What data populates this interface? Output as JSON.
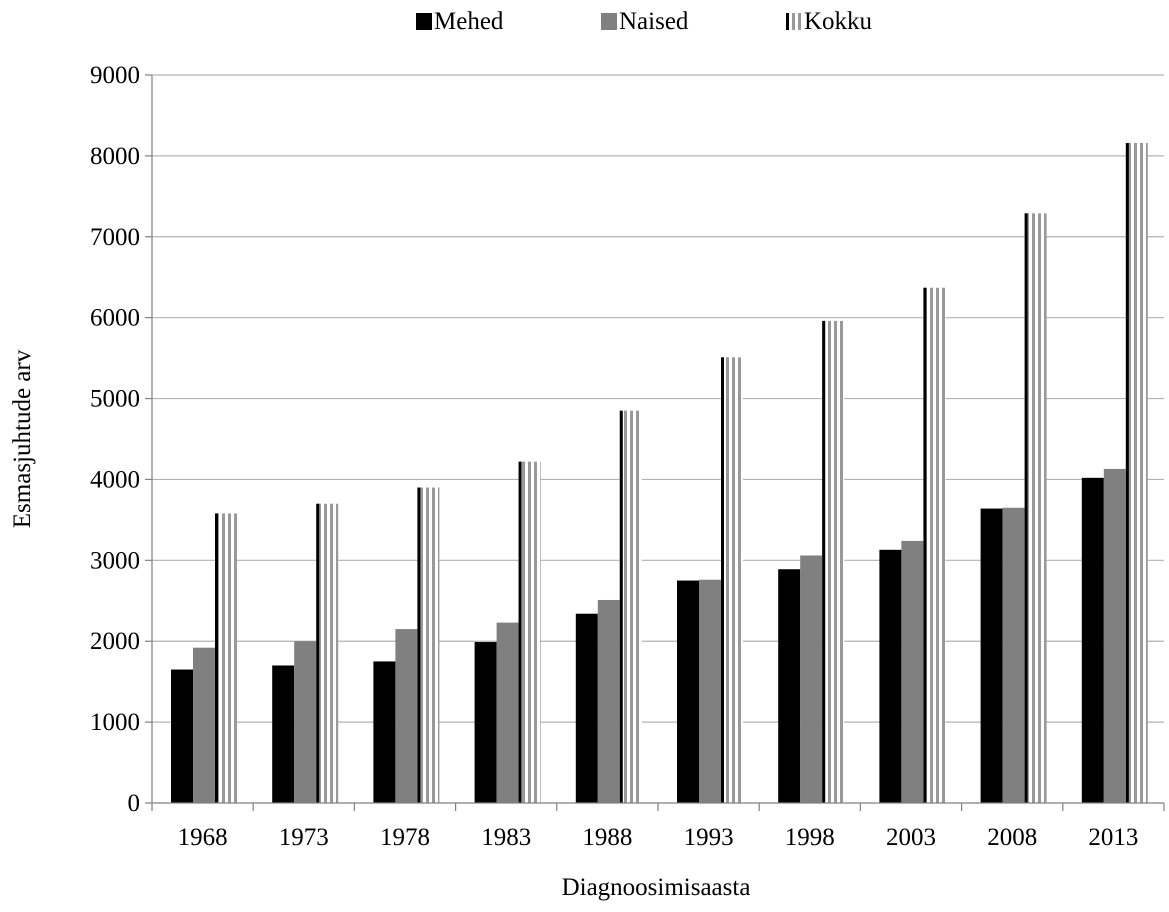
{
  "chart_data": {
    "type": "bar",
    "title": "",
    "xlabel": "Diagnoosimisaasta",
    "ylabel": "Esmasjuhtude arv",
    "categories": [
      "1968",
      "1973",
      "1978",
      "1983",
      "1988",
      "1993",
      "1998",
      "2003",
      "2008",
      "2013"
    ],
    "series": [
      {
        "name": "Mehed",
        "color": "#000000",
        "pattern": "solid",
        "values": [
          1650,
          1700,
          1750,
          1990,
          2340,
          2750,
          2890,
          3130,
          3640,
          4020
        ]
      },
      {
        "name": "Naised",
        "color": "#808080",
        "pattern": "solid",
        "values": [
          1920,
          2000,
          2150,
          2230,
          2510,
          2760,
          3060,
          3240,
          3650,
          4130
        ]
      },
      {
        "name": "Kokku",
        "color": "#000000",
        "pattern": "vertical-stripes",
        "values": [
          3580,
          3700,
          3900,
          4220,
          4850,
          5510,
          5960,
          6370,
          7290,
          8160
        ]
      }
    ],
    "ylim": [
      0,
      9000
    ],
    "yticks": [
      "0",
      "1000",
      "2000",
      "3000",
      "4000",
      "5000",
      "6000",
      "7000",
      "8000",
      "9000"
    ],
    "grid": "horizontal",
    "legend_position": "top"
  }
}
